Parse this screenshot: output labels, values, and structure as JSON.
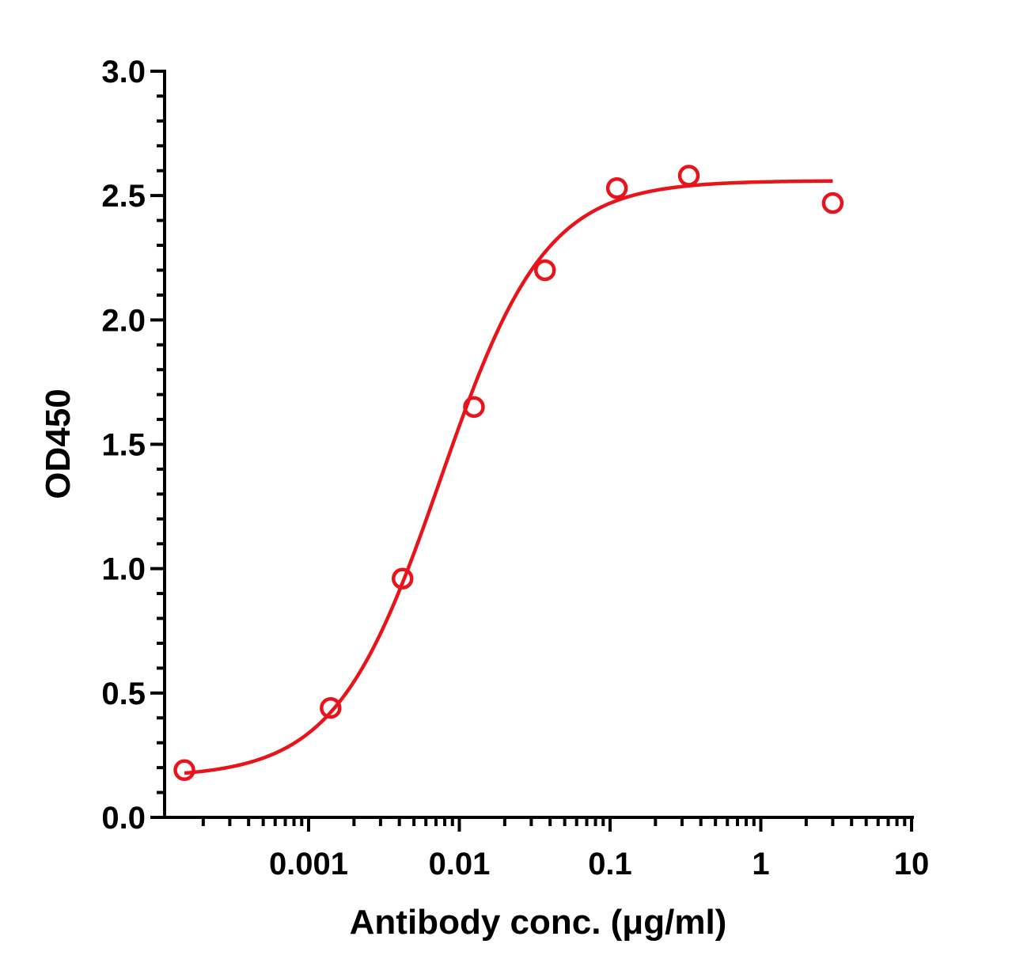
{
  "chart_data": {
    "type": "scatter",
    "xlabel": "Antibody conc. (μg/ml)",
    "ylabel": "OD450",
    "x_scale": "log",
    "xlim": [
      0.00015,
      10
    ],
    "ylim": [
      0,
      3.0
    ],
    "x_ticks": [
      0.001,
      0.01,
      0.1,
      1,
      10
    ],
    "x_tick_labels": [
      "0.001",
      "0.01",
      "0.1",
      "1",
      "10"
    ],
    "y_ticks": [
      0,
      0.5,
      1.0,
      1.5,
      2.0,
      2.5,
      3.0
    ],
    "y_tick_labels": [
      "0.0",
      "0.5",
      "1.0",
      "1.5",
      "2.0",
      "2.5",
      "3.0"
    ],
    "grid": false,
    "legend": "none",
    "series": [
      {
        "marker": "open-circle",
        "color": "#e8141b",
        "x": [
          0.00015,
          0.0014,
          0.0042,
          0.0125,
          0.037,
          0.111,
          0.333,
          3.0
        ],
        "y": [
          0.19,
          0.44,
          0.96,
          1.65,
          2.2,
          2.53,
          2.58,
          2.47
        ]
      }
    ],
    "fit": {
      "type": "4PL",
      "color": "#e8141b",
      "bottom": 0.16,
      "top": 2.56,
      "ec50": 0.0075,
      "hill": 1.25,
      "x_range": [
        0.00015,
        3.0
      ]
    }
  }
}
